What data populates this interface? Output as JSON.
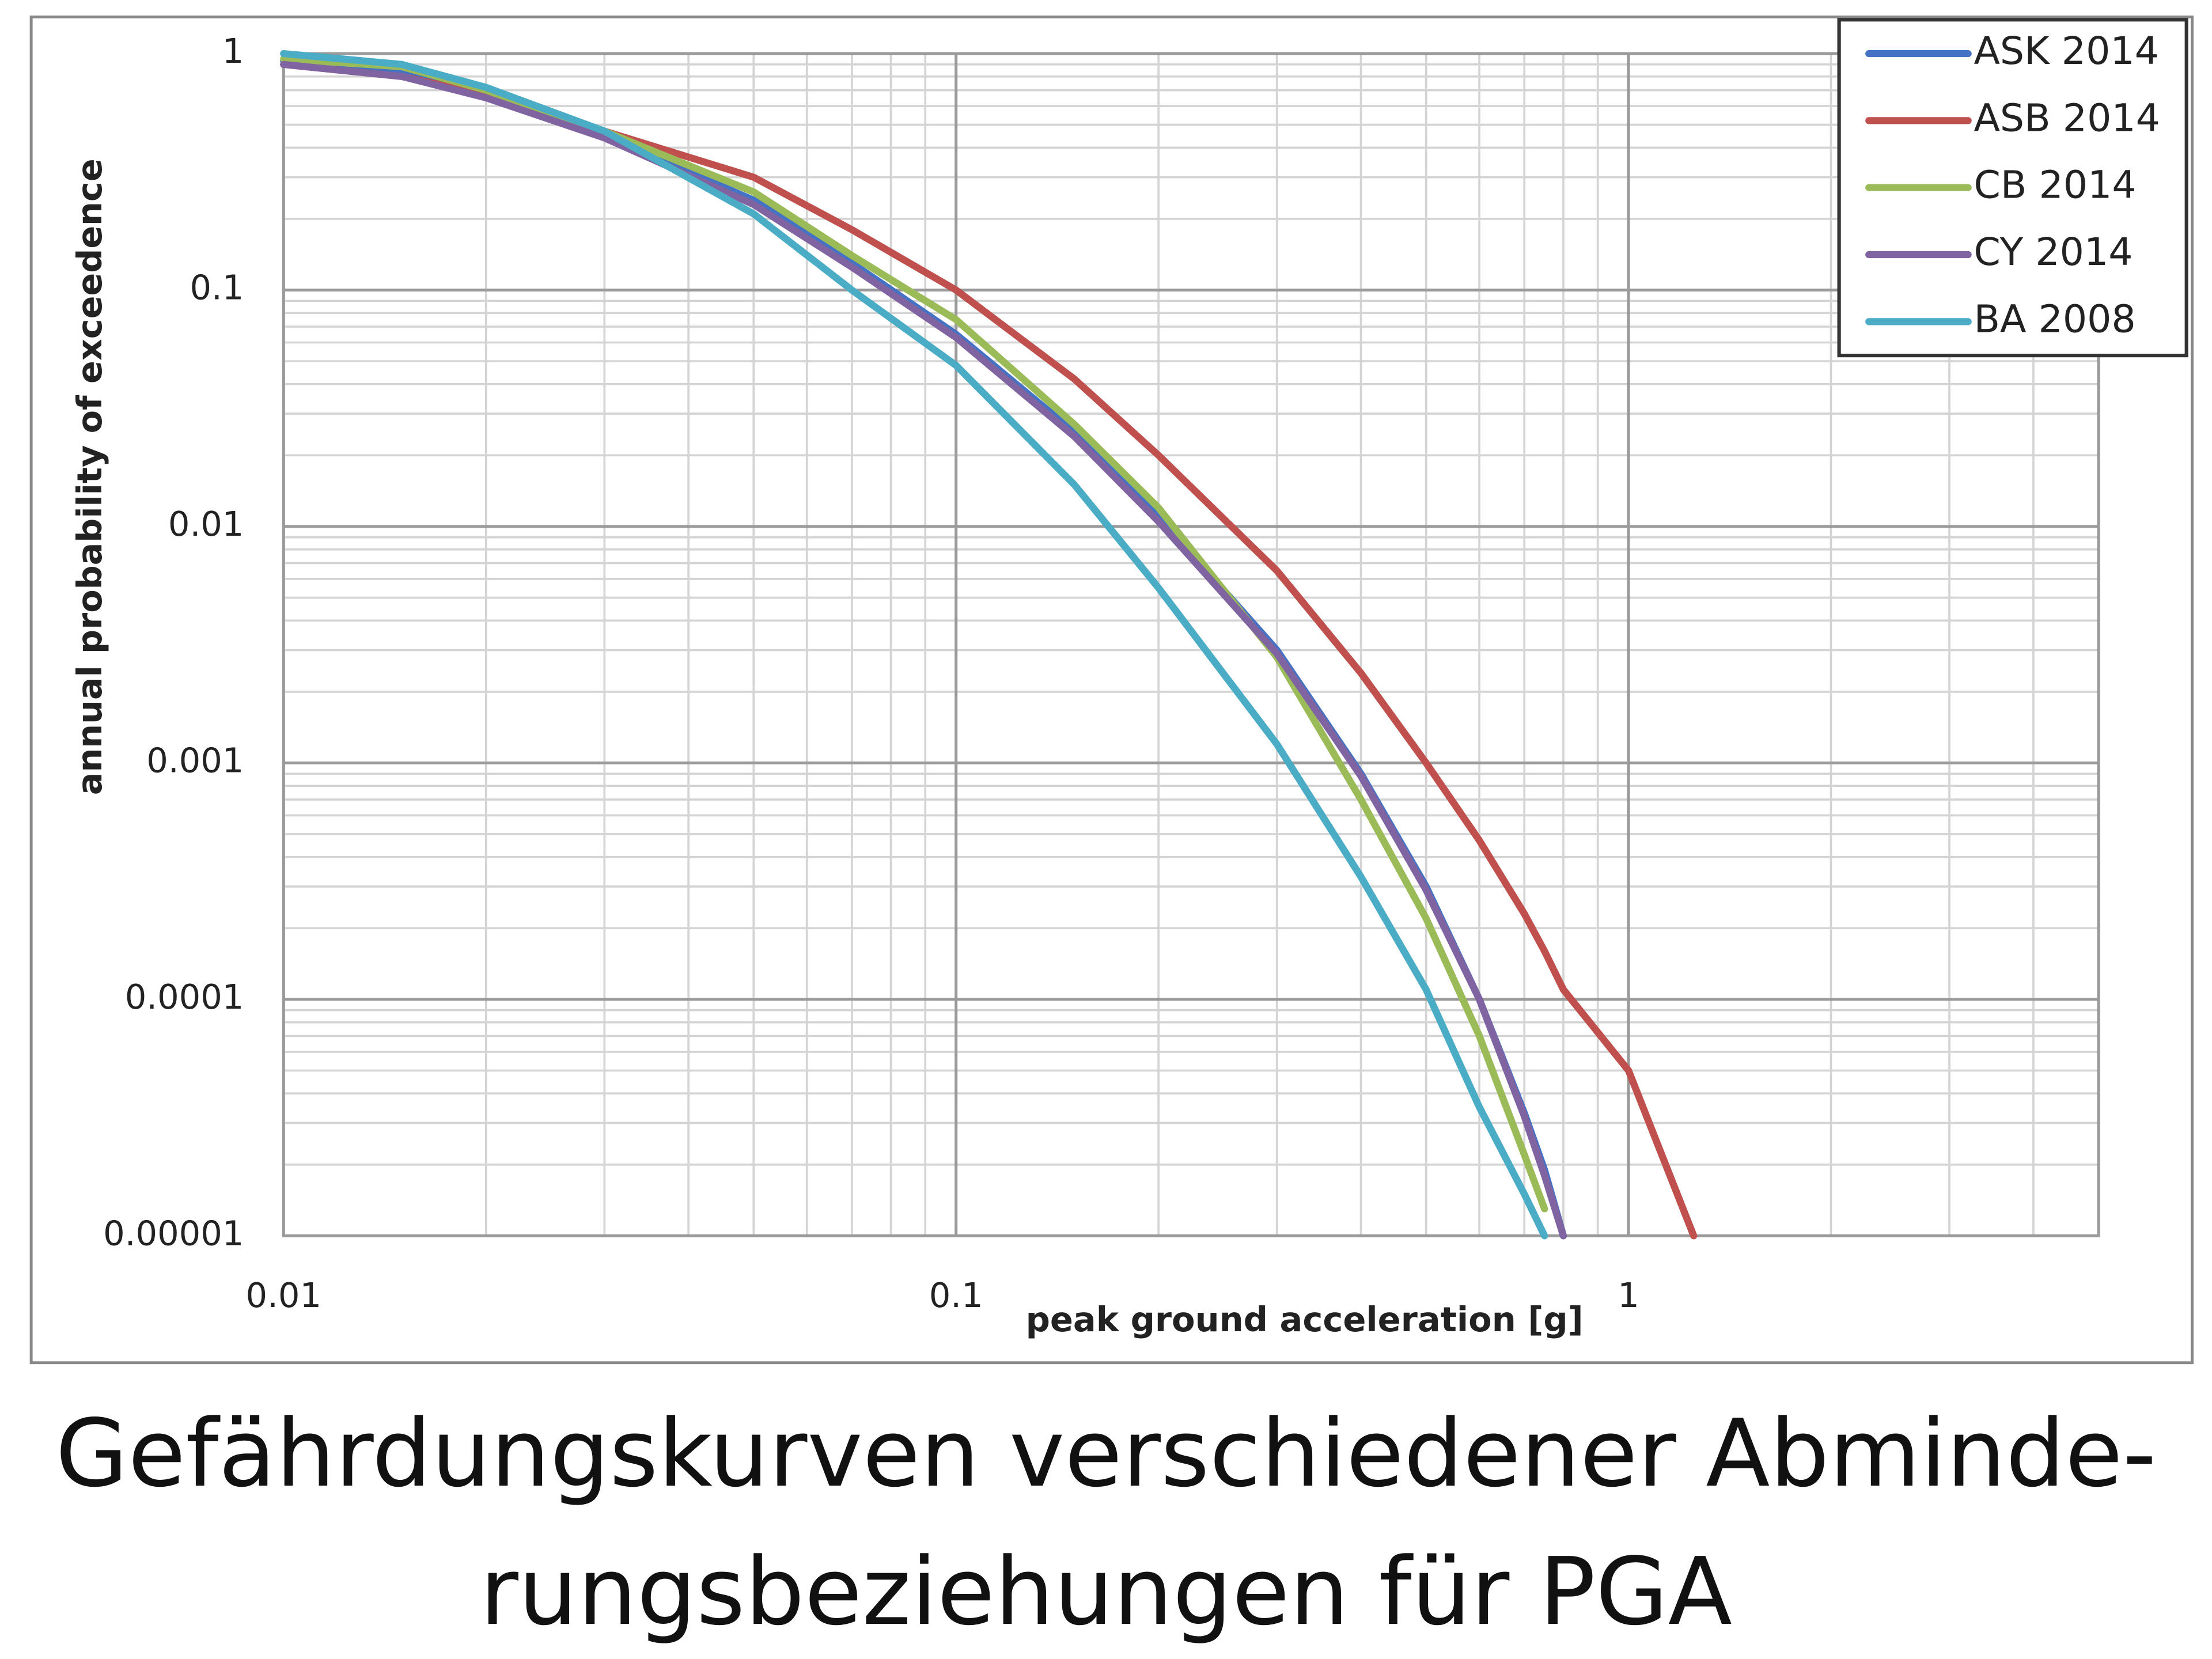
{
  "chart_data": {
    "type": "line",
    "title": [
      "Gefährdungskurven verschiedener Abminde-",
      "rungsbeziehungen für PGA"
    ],
    "x_label": "peak ground acceleration [g]",
    "y_label": "annual probability of exceedence",
    "x": [
      0.01,
      0.015,
      0.02,
      0.03,
      0.05,
      0.07,
      0.1,
      0.15,
      0.2,
      0.3,
      0.4,
      0.5,
      0.6,
      0.7,
      0.75,
      0.8,
      1,
      1.25
    ],
    "series": [
      {
        "name": "ASK 2014",
        "color": "#4472c4",
        "values": [
          0.93,
          0.85,
          0.68,
          0.45,
          0.24,
          0.13,
          0.065,
          0.025,
          0.011,
          0.003,
          0.0009,
          0.0003,
          0.0001,
          3.3e-05,
          1.9e-05,
          1e-05,
          null,
          null
        ]
      },
      {
        "name": "ASB 2014",
        "color": "#c0504d",
        "values": [
          0.9,
          0.8,
          0.67,
          0.47,
          0.3,
          0.18,
          0.1,
          0.042,
          0.02,
          0.0065,
          0.0024,
          0.001,
          0.00047,
          0.00023,
          0.00016,
          0.00011,
          5e-05,
          1e-05
        ]
      },
      {
        "name": "CB 2014",
        "color": "#9bbb59",
        "values": [
          0.95,
          0.88,
          0.7,
          0.47,
          0.26,
          0.14,
          0.075,
          0.027,
          0.012,
          0.0028,
          0.0007,
          0.00022,
          7e-05,
          2.2e-05,
          1.3e-05,
          null,
          null,
          null
        ]
      },
      {
        "name": "CY 2014",
        "color": "#8064a2",
        "values": [
          0.9,
          0.8,
          0.65,
          0.44,
          0.23,
          0.125,
          0.063,
          0.024,
          0.0105,
          0.0029,
          0.00088,
          0.00029,
          0.0001,
          3.2e-05,
          1.8e-05,
          1e-05,
          null,
          null
        ]
      },
      {
        "name": "BA 2008",
        "color": "#4bacc6",
        "values": [
          1,
          0.9,
          0.72,
          0.47,
          0.21,
          0.1,
          0.048,
          0.015,
          0.0055,
          0.0012,
          0.00033,
          0.00011,
          3.5e-05,
          1.5e-05,
          1e-05,
          null,
          null,
          null
        ]
      }
    ],
    "xlim": [
      0.01,
      5
    ],
    "ylim": [
      1e-05,
      1
    ],
    "xticks": [
      0.01,
      0.1,
      1
    ],
    "yticks": [
      1e-05,
      0.0001,
      0.001,
      0.01,
      0.1,
      1
    ],
    "x_log": true,
    "y_log": true,
    "grid": true,
    "legend": "top-right"
  }
}
